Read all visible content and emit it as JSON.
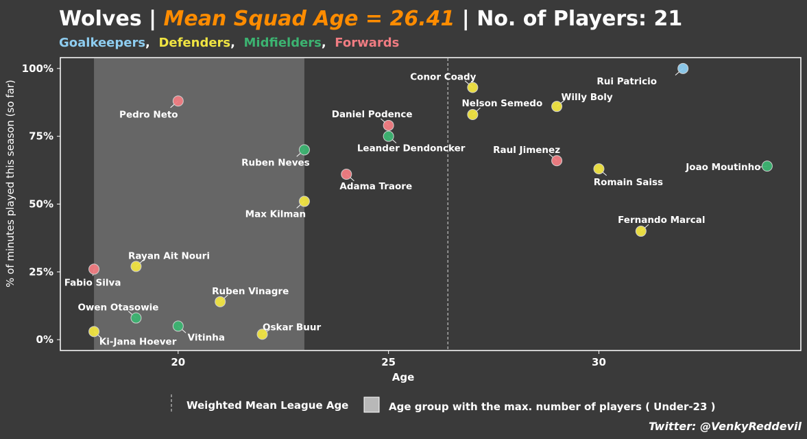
{
  "title": {
    "team": "Wolves",
    "sep1": " | ",
    "highlight": "Mean Squad Age = 26.41",
    "sep2": " | ",
    "players": "No. of Players: 21"
  },
  "position_legend": [
    {
      "label": "Goalkeepers",
      "color": "#8ecdf0"
    },
    {
      "label": "Defenders",
      "color": "#f0e442"
    },
    {
      "label": "Midfielders",
      "color": "#3cb371"
    },
    {
      "label": "Forwards",
      "color": "#f07c82"
    }
  ],
  "legend_sep": ",",
  "credit": "Twitter: @VenkyReddevil",
  "chart_data": {
    "type": "scatter",
    "xlabel": "Age",
    "ylabel": "% of minutes played this season (so far)",
    "xlim": [
      17.2,
      34.8
    ],
    "ylim": [
      -4,
      104
    ],
    "x_ticks": [
      20,
      25,
      30
    ],
    "x_tick_labels": [
      "20",
      "25",
      "30"
    ],
    "y_ticks": [
      0,
      25,
      50,
      75,
      100
    ],
    "y_tick_labels": [
      "0%",
      "25%",
      "50%",
      "75%",
      "100%"
    ],
    "shaded_band": {
      "from": 18,
      "to": 23
    },
    "mean_line_x": 26.41,
    "grid": false,
    "legend": {
      "placement": "bottom",
      "line_label": "Weighted Mean League Age",
      "band_label": "Age group with the max. number of players ( Under-23 )"
    },
    "points": [
      {
        "name": "Rui Patricio",
        "x": 32,
        "y": 100,
        "pos": "Goalkeepers",
        "label_dx": -82,
        "label_dy": 19
      },
      {
        "name": "Conor Coady",
        "x": 27,
        "y": 93,
        "pos": "Defenders",
        "label_dx": -43,
        "label_dy": -15
      },
      {
        "name": "Pedro Neto",
        "x": 20,
        "y": 88,
        "pos": "Forwards",
        "label_dx": -43,
        "label_dy": 20
      },
      {
        "name": "Nelson Semedo",
        "x": 27,
        "y": 83,
        "pos": "Defenders",
        "label_dx": 43,
        "label_dy": -16
      },
      {
        "name": "Willy Boly",
        "x": 29,
        "y": 86,
        "pos": "Defenders",
        "label_dx": 44,
        "label_dy": -13
      },
      {
        "name": "Daniel Podence",
        "x": 25,
        "y": 79,
        "pos": "Forwards",
        "label_dx": -24,
        "label_dy": -16
      },
      {
        "name": "Leander Dendoncker",
        "x": 25,
        "y": 75,
        "pos": "Midfielders",
        "label_dx": 33,
        "label_dy": 18
      },
      {
        "name": "Ruben Neves",
        "x": 23,
        "y": 70,
        "pos": "Midfielders",
        "label_dx": -42,
        "label_dy": 19
      },
      {
        "name": "Raul Jimenez",
        "x": 29,
        "y": 66,
        "pos": "Forwards",
        "label_dx": -44,
        "label_dy": -15
      },
      {
        "name": "Joao Moutinho",
        "x": 34,
        "y": 64,
        "pos": "Midfielders",
        "label_dx": -64,
        "label_dy": 2
      },
      {
        "name": "Romain Saiss",
        "x": 30,
        "y": 63,
        "pos": "Defenders",
        "label_dx": 43,
        "label_dy": 20
      },
      {
        "name": "Adama Traore",
        "x": 24,
        "y": 61,
        "pos": "Forwards",
        "label_dx": 43,
        "label_dy": 18
      },
      {
        "name": "Max Kilman",
        "x": 23,
        "y": 51,
        "pos": "Defenders",
        "label_dx": -42,
        "label_dy": 19
      },
      {
        "name": "Fernando Marcal",
        "x": 31,
        "y": 40,
        "pos": "Defenders",
        "label_dx": 30,
        "label_dy": -16
      },
      {
        "name": "Rayan Ait Nouri",
        "x": 19,
        "y": 27,
        "pos": "Defenders",
        "label_dx": 48,
        "label_dy": -15
      },
      {
        "name": "Fabio Silva",
        "x": 18,
        "y": 26,
        "pos": "Forwards",
        "label_dx": -2,
        "label_dy": 20
      },
      {
        "name": "Ruben Vinagre",
        "x": 21,
        "y": 14,
        "pos": "Defenders",
        "label_dx": 44,
        "label_dy": -15
      },
      {
        "name": "Owen Otasowie",
        "x": 19,
        "y": 8,
        "pos": "Midfielders",
        "label_dx": -26,
        "label_dy": -15
      },
      {
        "name": "Oskar Buur",
        "x": 22,
        "y": 2,
        "pos": "Defenders",
        "label_dx": 43,
        "label_dy": -10
      },
      {
        "name": "Vitinha",
        "x": 20,
        "y": 5,
        "pos": "Midfielders",
        "label_dx": 41,
        "label_dy": 17
      },
      {
        "name": "Ki-Jana Hoever",
        "x": 18,
        "y": 3,
        "pos": "Defenders",
        "label_dx": 64,
        "label_dy": 15
      }
    ]
  }
}
